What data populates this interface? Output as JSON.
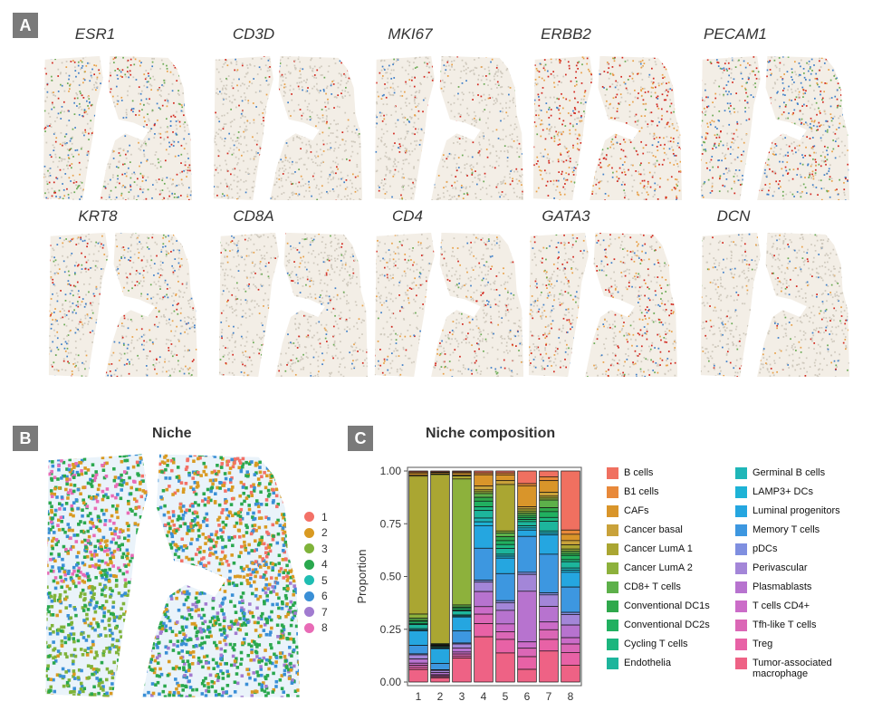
{
  "panels": {
    "a_label": "A",
    "b_label": "B",
    "c_label": "C",
    "b_title": "Niche",
    "c_title": "Niche composition"
  },
  "genes": [
    "ESR1",
    "CD3D",
    "MKI67",
    "ERBB2",
    "PECAM1",
    "KRT8",
    "CD8A",
    "CD4",
    "GATA3",
    "DCN"
  ],
  "niche_legend": [
    {
      "label": "1",
      "color": "#f37167"
    },
    {
      "label": "2",
      "color": "#d99a22"
    },
    {
      "label": "3",
      "color": "#7fb33a"
    },
    {
      "label": "4",
      "color": "#2aa84e"
    },
    {
      "label": "5",
      "color": "#1fbdb2"
    },
    {
      "label": "6",
      "color": "#3a8fd6"
    },
    {
      "label": "7",
      "color": "#a17bd0"
    },
    {
      "label": "8",
      "color": "#e86bb6"
    }
  ],
  "cell_types": [
    {
      "label": "B cells",
      "color": "#f07060"
    },
    {
      "label": "B1 cells",
      "color": "#e8893a"
    },
    {
      "label": "CAFs",
      "color": "#d9952a"
    },
    {
      "label": "Cancer basal",
      "color": "#c9a23a"
    },
    {
      "label": "Cancer LumA 1",
      "color": "#aaa632"
    },
    {
      "label": "Cancer LumA 2",
      "color": "#8db13c"
    },
    {
      "label": "CD8+ T cells",
      "color": "#5db04a"
    },
    {
      "label": "Conventional DC1s",
      "color": "#2fa84c"
    },
    {
      "label": "Conventional DC2s",
      "color": "#21b060"
    },
    {
      "label": "Cycling T cells",
      "color": "#1cb67e"
    },
    {
      "label": "Endothelia",
      "color": "#1db59c"
    },
    {
      "label": "Germinal B cells",
      "color": "#1fb6b8"
    },
    {
      "label": "LAMP3+ DCs",
      "color": "#1eb3d6"
    },
    {
      "label": "Luminal progenitors",
      "color": "#25a6e0"
    },
    {
      "label": "Memory T cells",
      "color": "#3d97e0"
    },
    {
      "label": "pDCs",
      "color": "#7f8fe0"
    },
    {
      "label": "Perivascular",
      "color": "#a386d8"
    },
    {
      "label": "Plasmablasts",
      "color": "#b773cf"
    },
    {
      "label": "T cells CD4+",
      "color": "#cb6cc8"
    },
    {
      "label": "Tfh-like T cells",
      "color": "#db67b6"
    },
    {
      "label": "Treg",
      "color": "#e862a6"
    },
    {
      "label": "Tumor-associated macrophage",
      "color": "#ee6285"
    }
  ],
  "chart_data": {
    "type": "bar",
    "title": "Niche composition",
    "ylabel": "Proportion",
    "xlabel": "",
    "categories": [
      "1",
      "2",
      "3",
      "4",
      "5",
      "6",
      "7",
      "8"
    ],
    "yticks": [
      "0.00",
      "0.25",
      "0.50",
      "0.75",
      "1.00"
    ],
    "ylim": [
      0,
      1
    ],
    "stacked": true,
    "series": [
      {
        "name": "B cells",
        "values": [
          0.005,
          0.005,
          0.005,
          0.01,
          0.01,
          0.06,
          0.03,
          0.28
        ]
      },
      {
        "name": "B1 cells",
        "values": [
          0.005,
          0.003,
          0.005,
          0.01,
          0.01,
          0.01,
          0.02,
          0.02
        ]
      },
      {
        "name": "CAFs",
        "values": [
          0.01,
          0.006,
          0.01,
          0.06,
          0.03,
          0.1,
          0.06,
          0.03
        ]
      },
      {
        "name": "Cancer basal",
        "values": [
          0.005,
          0.003,
          0.005,
          0.02,
          0.02,
          0.01,
          0.02,
          0.02
        ]
      },
      {
        "name": "Cancer LumA 1",
        "values": [
          0.66,
          0.8,
          0.015,
          0.01,
          0.24,
          0.01,
          0.01,
          0.02
        ]
      },
      {
        "name": "Cancer LumA 2",
        "values": [
          0.02,
          0.005,
          0.63,
          0.01,
          0.01,
          0.01,
          0.01,
          0.01
        ]
      },
      {
        "name": "CD8+ T cells",
        "values": [
          0.01,
          0.003,
          0.01,
          0.02,
          0.02,
          0.01,
          0.04,
          0.01
        ]
      },
      {
        "name": "Conventional DC1s",
        "values": [
          0.005,
          0.002,
          0.005,
          0.02,
          0.02,
          0.01,
          0.02,
          0.01
        ]
      },
      {
        "name": "Conventional DC2s",
        "values": [
          0.01,
          0.002,
          0.01,
          0.03,
          0.02,
          0.01,
          0.03,
          0.02
        ]
      },
      {
        "name": "Cycling T cells",
        "values": [
          0.005,
          0.002,
          0.005,
          0.02,
          0.02,
          0.01,
          0.02,
          0.01
        ]
      },
      {
        "name": "Endothelia",
        "values": [
          0.02,
          0.005,
          0.02,
          0.04,
          0.03,
          0.02,
          0.05,
          0.03
        ]
      },
      {
        "name": "Germinal B cells",
        "values": [
          0.005,
          0.003,
          0.005,
          0.02,
          0.01,
          0.01,
          0.01,
          0.01
        ]
      },
      {
        "name": "LAMP3+ DCs",
        "values": [
          0.005,
          0.003,
          0.005,
          0.02,
          0.01,
          0.01,
          0.01,
          0.01
        ]
      },
      {
        "name": "Luminal progenitors",
        "values": [
          0.07,
          0.07,
          0.07,
          0.12,
          0.08,
          0.03,
          0.1,
          0.07
        ]
      },
      {
        "name": "Memory T cells",
        "values": [
          0.04,
          0.03,
          0.06,
          0.17,
          0.14,
          0.17,
          0.2,
          0.12
        ]
      },
      {
        "name": "pDCs",
        "values": [
          0.005,
          0.003,
          0.005,
          0.01,
          0.01,
          0.01,
          0.01,
          0.01
        ]
      },
      {
        "name": "Perivascular",
        "values": [
          0.02,
          0.01,
          0.02,
          0.05,
          0.04,
          0.08,
          0.06,
          0.05
        ]
      },
      {
        "name": "Plasmablasts",
        "values": [
          0.02,
          0.01,
          0.02,
          0.08,
          0.07,
          0.24,
          0.08,
          0.06
        ]
      },
      {
        "name": "T cells CD4+",
        "values": [
          0.01,
          0.005,
          0.01,
          0.04,
          0.04,
          0.03,
          0.04,
          0.03
        ]
      },
      {
        "name": "Tfh-like T cells",
        "values": [
          0.01,
          0.005,
          0.01,
          0.05,
          0.04,
          0.04,
          0.05,
          0.04
        ]
      },
      {
        "name": "Treg",
        "values": [
          0.01,
          0.005,
          0.01,
          0.07,
          0.07,
          0.06,
          0.06,
          0.06
        ]
      },
      {
        "name": "Tumor-associated macrophage",
        "values": [
          0.06,
          0.02,
          0.12,
          0.24,
          0.15,
          0.06,
          0.16,
          0.08
        ]
      }
    ]
  }
}
